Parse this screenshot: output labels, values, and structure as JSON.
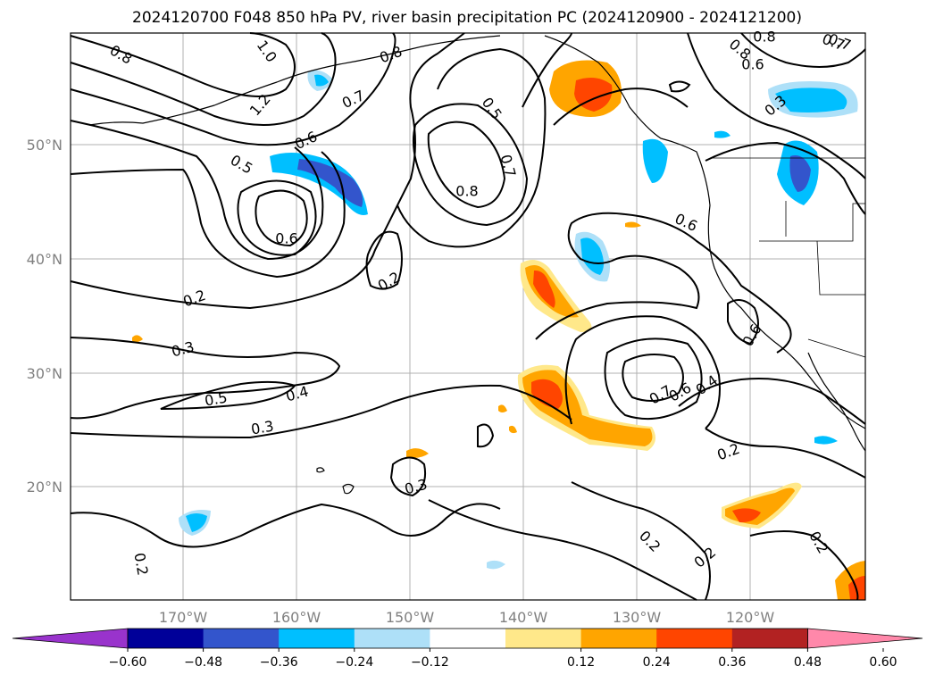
{
  "figure": {
    "title": "2024120700 F048 850 hPa PV, river basin precipitation PC (2024120900 - 2024121200)"
  },
  "map": {
    "lat_labels": [
      "50°N",
      "40°N",
      "30°N",
      "20°N"
    ],
    "lon_labels": [
      "170°W",
      "160°W",
      "150°W",
      "140°W",
      "130°W",
      "120°W"
    ],
    "contour_labels": [
      "0.8",
      "1.0",
      "0.8",
      "1.2",
      "0.7",
      "0.5",
      "0.7",
      "0.8",
      "0.6",
      "0.5",
      "0.6",
      "0.8",
      "0.7",
      "0.6",
      "0.6",
      "0.2",
      "0.2",
      "0.3",
      "0.5",
      "0.4",
      "0.3",
      "0.7",
      "0.6",
      "0.4",
      "0.6",
      "0.2",
      "0.3",
      "0.2",
      "0.2",
      "0.2",
      "0.2",
      "0.3",
      "0.8",
      "0.7"
    ]
  },
  "colorbar": {
    "ticks": [
      "−0.60",
      "−0.48",
      "−0.36",
      "−0.24",
      "−0.12",
      "0.12",
      "0.24",
      "0.36",
      "0.48",
      "0.60"
    ],
    "colors": {
      "below": "#9933cc",
      "c1": "#000099",
      "c2": "#3355cc",
      "c3": "#00bfff",
      "c4": "#aee0f8",
      "c5": "#ffffff",
      "c6": "#ffe88a",
      "c7": "#ffa500",
      "c8": "#ff4500",
      "c9": "#b22222",
      "above": "#ff88aa"
    }
  }
}
